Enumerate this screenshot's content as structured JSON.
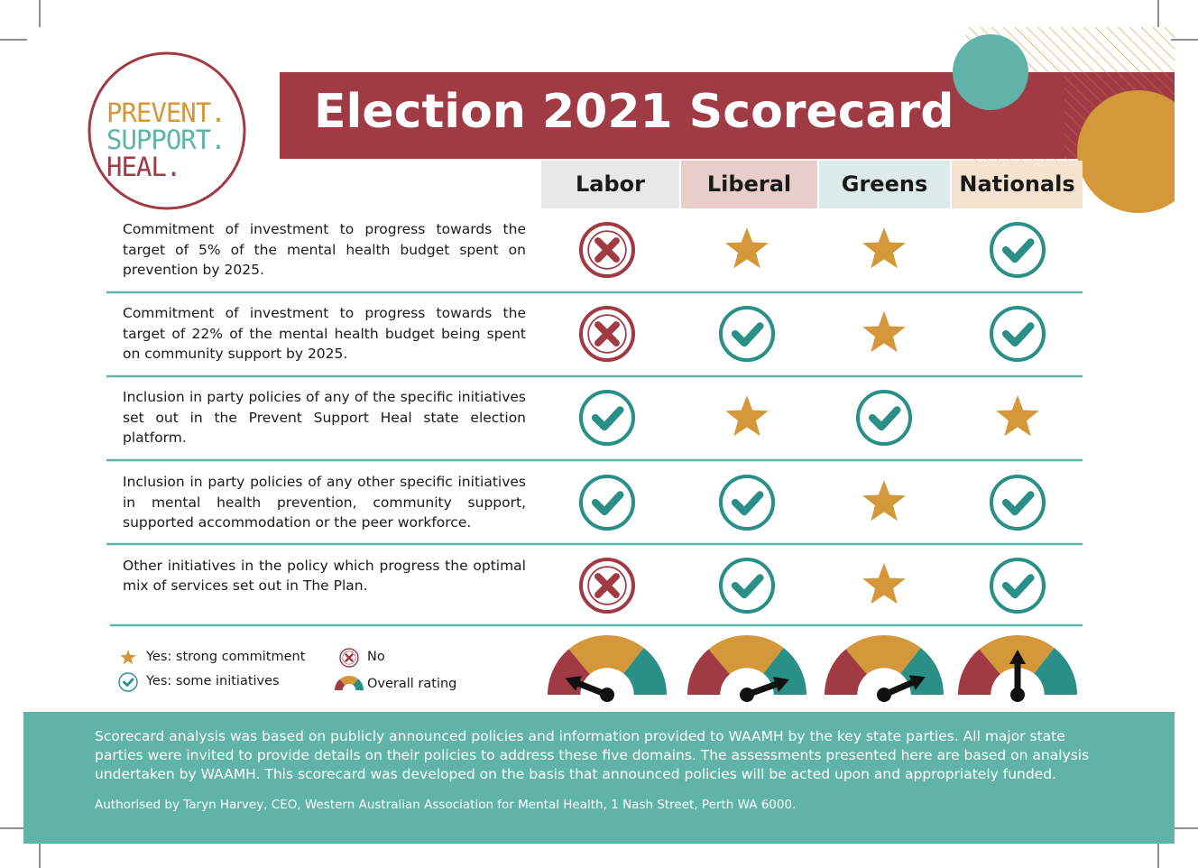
{
  "header": {
    "logo": [
      "PREVENT.",
      "SUPPORT.",
      "HEAL."
    ],
    "title": "Election 2021 Scorecard"
  },
  "table": {
    "columns": [
      "Labor",
      "Liberal",
      "Greens",
      "Nationals"
    ],
    "rows": [
      {
        "label": "Commitment of investment to progress towards the target of 5% of the mental health budget spent on prevention by 2025.",
        "ratings": [
          "No",
          "Yes: strong commitment",
          "Yes: strong commitment",
          "Yes: some initiatives"
        ]
      },
      {
        "label": "Commitment of investment to progress towards the target of 22% of the mental health budget being spent on community support by 2025.",
        "ratings": [
          "No",
          "Yes: some initiatives",
          "Yes: strong commitment",
          "Yes: some initiatives"
        ]
      },
      {
        "label": "Inclusion in party policies of any of the specific initiatives set out in the Prevent Support Heal state election platform.",
        "ratings": [
          "Yes: some initiatives",
          "Yes: strong commitment",
          "Yes: some initiatives",
          "Yes: strong commitment"
        ]
      },
      {
        "label": "Inclusion in party policies of any other specific initiatives in mental health prevention, community support, supported accommodation or the peer workforce.",
        "ratings": [
          "Yes: some initiatives",
          "Yes: some initiatives",
          "Yes: strong commitment",
          "Yes: some initiatives"
        ]
      },
      {
        "label": "Other initiatives in the policy which progress the optimal mix of services set out in The Plan.",
        "ratings": [
          "No",
          "Yes: some initiatives",
          "Yes: strong commitment",
          "Yes: some initiatives"
        ]
      }
    ]
  },
  "legend": [
    "Yes: strong commitment",
    "Yes: some initiatives",
    "No",
    "Overall rating"
  ],
  "gauges": [
    12,
    89,
    87,
    50
  ],
  "footer": {
    "text": "Scorecard analysis was based on publicly announced policies and information provided to WAAMH by the key state parties. All major state parties were invited to provide details on their policies to address these five domains. The assessments presented here are based on analysis undertaken by WAAMH. This scorecard was developed on the basis that announced policies will be acted upon and appropriately funded.",
    "authorised": "Authorised by Taryn Harvey, CEO, Western Australian Association for Mental Health, 1 Nash Street, Perth WA 6000."
  }
}
